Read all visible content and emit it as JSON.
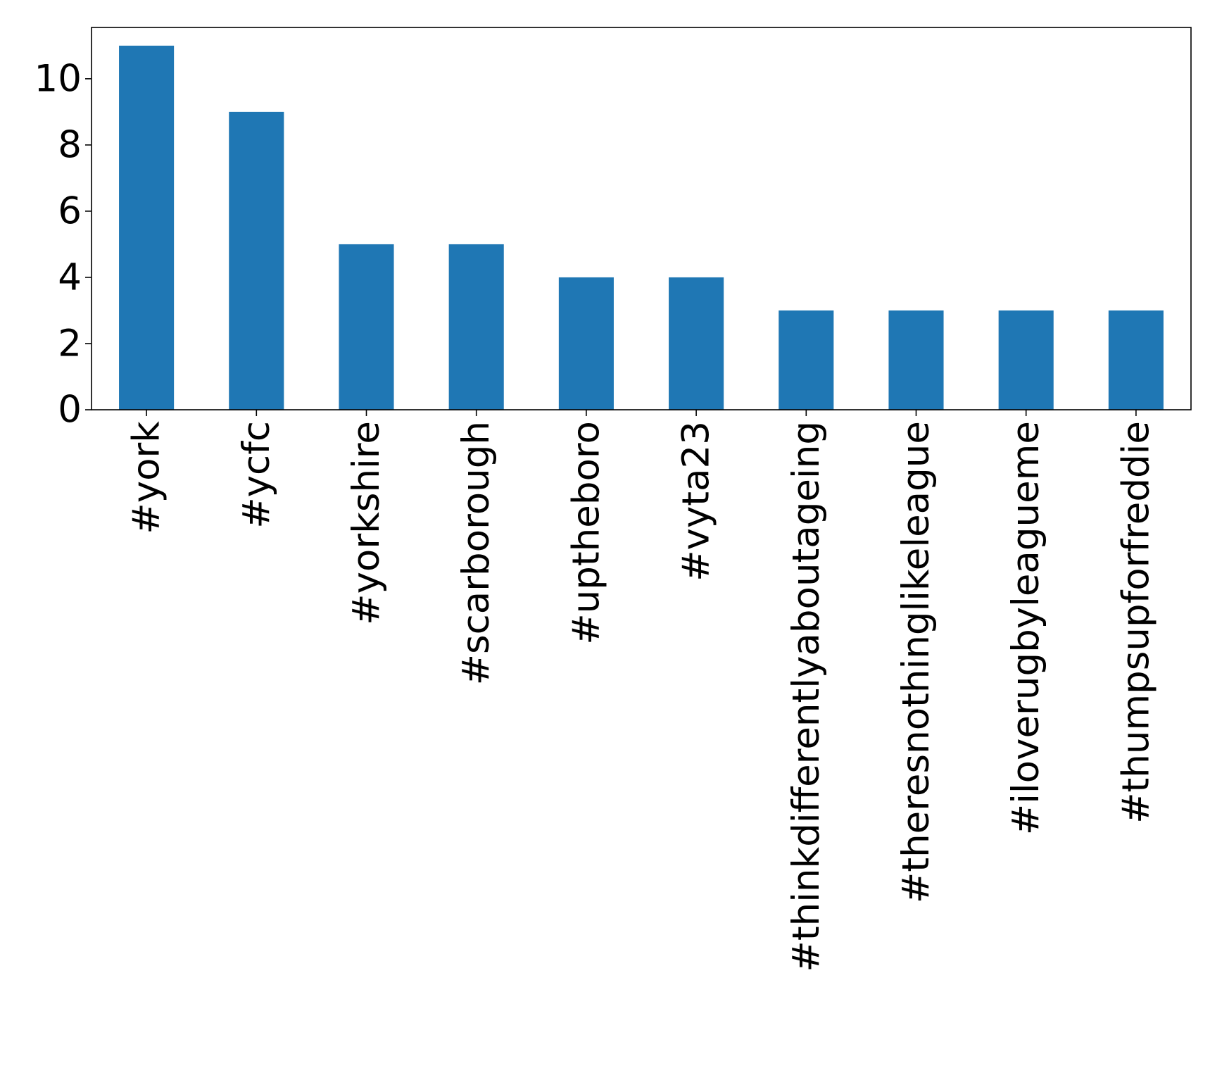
{
  "chart_data": {
    "type": "bar",
    "categories": [
      "#york",
      "#ycfc",
      "#yorkshire",
      "#scarborough",
      "#uptheboro",
      "#vyta23",
      "#thinkdifferentlyaboutageing",
      "#theresnothinglikeleague",
      "#iloverugbyleagueme",
      "#thumpsupforfreddie"
    ],
    "values": [
      11,
      9,
      5,
      5,
      4,
      4,
      3,
      3,
      3,
      3
    ],
    "title": "",
    "xlabel": "",
    "ylabel": "",
    "ylim": [
      0,
      11.55
    ],
    "yticks": [
      0,
      2,
      4,
      6,
      8,
      10
    ],
    "grid": false,
    "legend": "none",
    "bar_color": "#1f77b4",
    "axis_color": "#000000"
  }
}
